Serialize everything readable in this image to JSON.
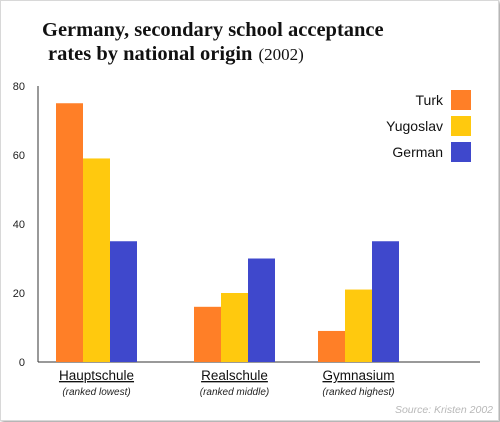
{
  "chart_data": {
    "type": "bar",
    "title_line1": "Germany, secondary school acceptance",
    "title_line2": "rates by national origin",
    "title_year": "(2002)",
    "categories": [
      "Hauptschule",
      "Realschule",
      "Gymnasium"
    ],
    "category_notes": [
      "(ranked lowest)",
      "(ranked middle)",
      "(ranked highest)"
    ],
    "series": [
      {
        "name": "Turk",
        "color": "#ff7f27",
        "values": [
          75,
          16,
          9
        ]
      },
      {
        "name": "Yugoslav",
        "color": "#ffc90e",
        "values": [
          59,
          20,
          21
        ]
      },
      {
        "name": "German",
        "color": "#3f48cc",
        "values": [
          35,
          30,
          35
        ]
      }
    ],
    "y_ticks": [
      "0",
      "20",
      "40",
      "60",
      "80"
    ],
    "ylim": [
      0,
      100
    ],
    "legend_position": "top-right",
    "grid": false,
    "source": "Source: Kristen 2002"
  }
}
